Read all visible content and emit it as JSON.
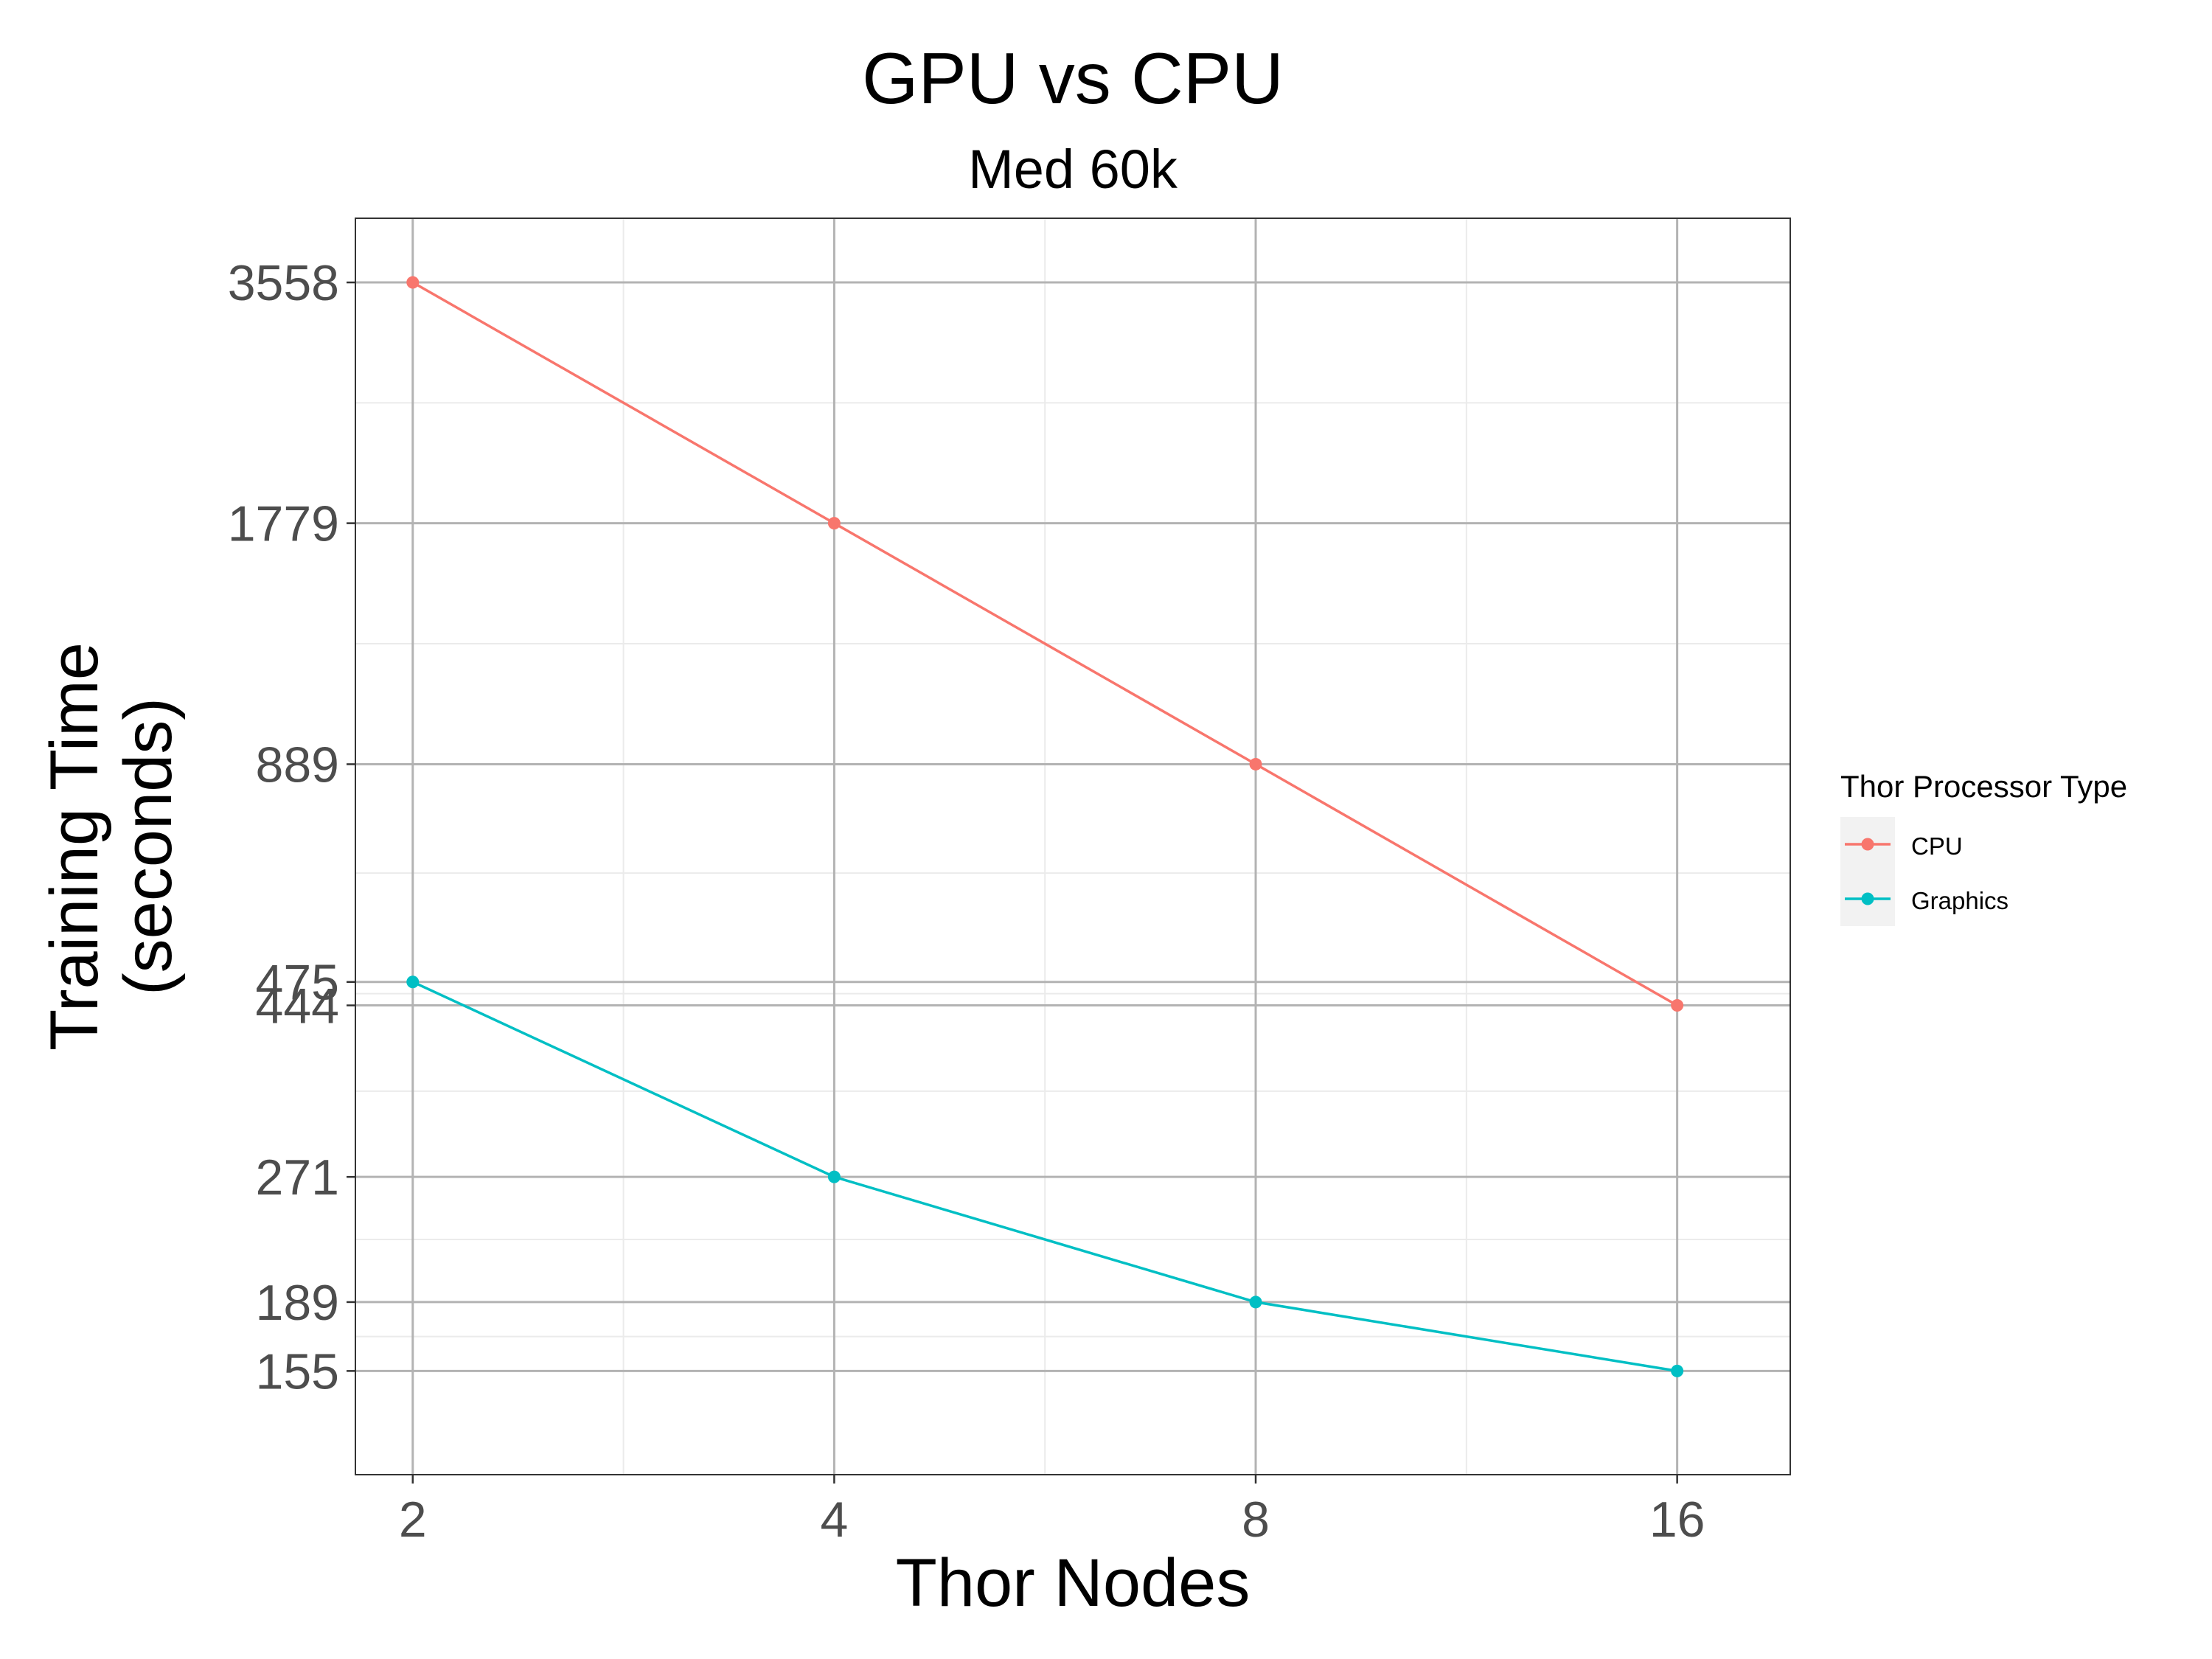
{
  "chart_data": {
    "type": "line",
    "title": "GPU vs CPU",
    "subtitle": "Med 60k",
    "xlabel": "Thor Nodes",
    "ylabel_lines": [
      "Training Time",
      "(seconds)"
    ],
    "x": [
      2,
      4,
      8,
      16
    ],
    "x_scale": "log2",
    "xlim": [
      1.82,
      19.27
    ],
    "y_scale": "log",
    "ylim": [
      115,
      4280
    ],
    "y_ticks": [
      155,
      189,
      271,
      444,
      475,
      889,
      1779,
      3558
    ],
    "x_ticks": [
      2,
      4,
      8,
      16
    ],
    "grid": true,
    "legend_title": "Thor Processor Type",
    "legend_position": "right",
    "series": [
      {
        "name": "CPU",
        "color": "#F8766D",
        "values": [
          3558,
          1779,
          889,
          444
        ]
      },
      {
        "name": "Graphics",
        "color": "#00BFC4",
        "values": [
          475,
          271,
          189,
          155
        ]
      }
    ]
  }
}
